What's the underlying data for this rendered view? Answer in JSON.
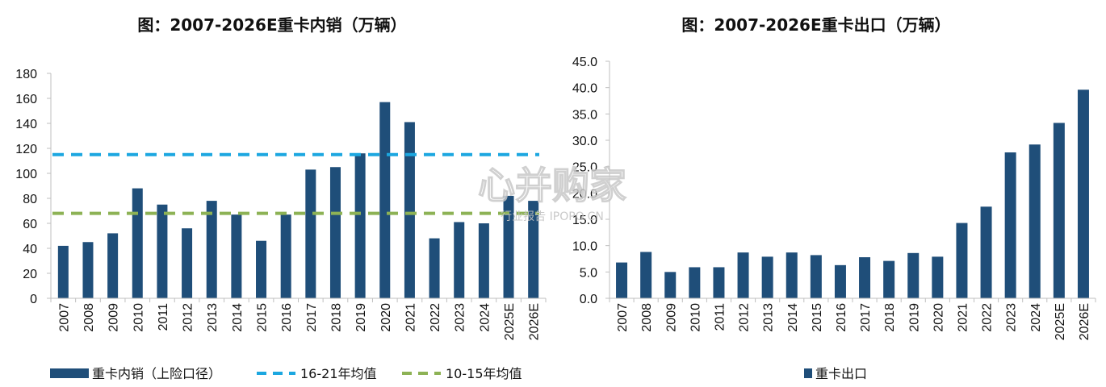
{
  "chart_data": [
    {
      "type": "bar",
      "title": "图：2007-2026E重卡内销（万辆）",
      "categories": [
        "2007",
        "2008",
        "2009",
        "2010",
        "2011",
        "2012",
        "2013",
        "2014",
        "2015",
        "2016",
        "2017",
        "2018",
        "2019",
        "2020",
        "2021",
        "2022",
        "2023",
        "2024",
        "2025E",
        "2026E"
      ],
      "series": [
        {
          "name": "重卡内销（上险口径）",
          "color": "#1F4E79",
          "values": [
            42,
            45,
            52,
            88,
            75,
            56,
            78,
            67,
            46,
            67,
            103,
            105,
            116,
            157,
            141,
            48,
            61,
            60,
            82,
            78
          ]
        }
      ],
      "lines": [
        {
          "name": "16-21年均值",
          "value": 115,
          "color": "#1CA7E0",
          "style": "dashed"
        },
        {
          "name": "10-15年均值",
          "value": 68,
          "color": "#8DB255",
          "style": "dashed"
        }
      ],
      "ylim": [
        0,
        180
      ],
      "yticks": [
        "0",
        "20",
        "40",
        "60",
        "80",
        "100",
        "120",
        "140",
        "160",
        "180"
      ],
      "grid": false,
      "legend_position": "bottom"
    },
    {
      "type": "bar",
      "title": "图：2007-2026E重卡出口（万辆）",
      "categories": [
        "2007",
        "2008",
        "2009",
        "2010",
        "2011",
        "2012",
        "2013",
        "2014",
        "2015",
        "2016",
        "2017",
        "2018",
        "2019",
        "2020",
        "2021",
        "2022",
        "2023",
        "2024",
        "2025E",
        "2026E"
      ],
      "series": [
        {
          "name": "重卡出口",
          "color": "#1F4E79",
          "values": [
            6.8,
            8.8,
            5.0,
            5.9,
            5.9,
            8.7,
            7.9,
            8.7,
            8.2,
            6.3,
            7.8,
            7.1,
            8.6,
            7.9,
            14.3,
            17.4,
            27.7,
            29.2,
            33.3,
            39.6
          ]
        }
      ],
      "ylim": [
        0,
        45
      ],
      "yticks": [
        "0.0",
        "5.0",
        "10.0",
        "15.0",
        "20.0",
        "25.0",
        "30.0",
        "35.0",
        "40.0",
        "45.0"
      ],
      "grid": false,
      "legend_position": "bottom"
    }
  ],
  "watermark": {
    "main": "心并购家",
    "sub": "行业报告 IPOPO.CN"
  }
}
